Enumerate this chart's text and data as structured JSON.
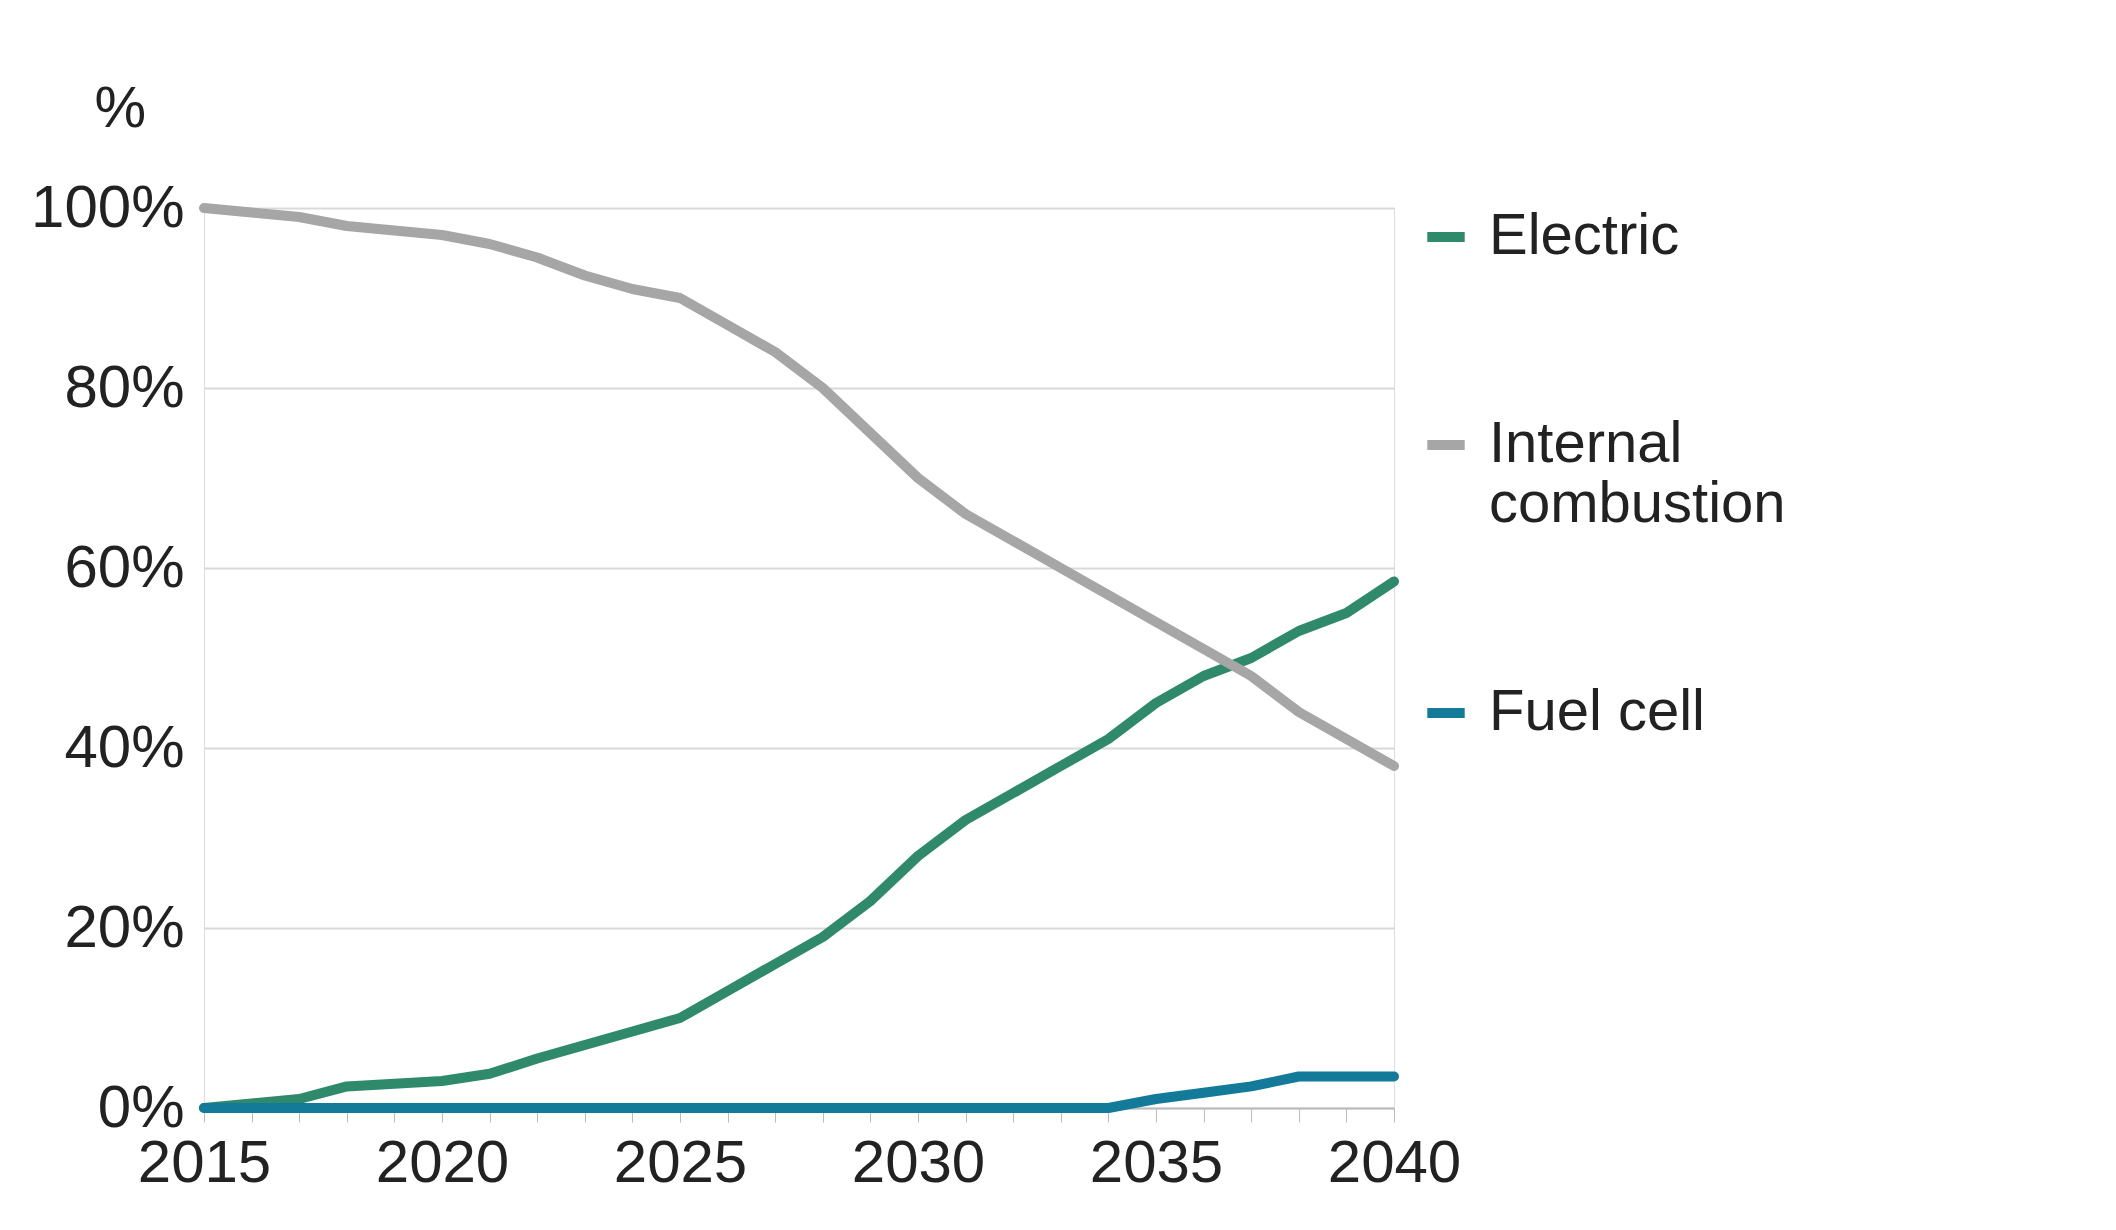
{
  "chart_data": {
    "type": "line",
    "ylabel": "%",
    "x": [
      2015,
      2016,
      2017,
      2018,
      2019,
      2020,
      2021,
      2022,
      2023,
      2024,
      2025,
      2026,
      2027,
      2028,
      2029,
      2030,
      2031,
      2032,
      2033,
      2034,
      2035,
      2036,
      2037,
      2038,
      2039,
      2040
    ],
    "series": [
      {
        "name": "Electric",
        "color": "#2f8a6b",
        "values": [
          0,
          0.5,
          1,
          2.4,
          2.7,
          3,
          3.8,
          5.5,
          7,
          8.5,
          10,
          13,
          16,
          19,
          23,
          28,
          32,
          35,
          38,
          41,
          45,
          48,
          50,
          53,
          55,
          58.5
        ]
      },
      {
        "name": "Internal combustion",
        "color": "#a6a6a6",
        "values": [
          100,
          99.5,
          99,
          98,
          97.5,
          97,
          96,
          94.5,
          92.5,
          91,
          90,
          87,
          84,
          80,
          75,
          70,
          66,
          63,
          60,
          57,
          54,
          51,
          48,
          44,
          41,
          38
        ]
      },
      {
        "name": "Fuel cell",
        "color": "#137a9a",
        "values": [
          0,
          0,
          0,
          0,
          0,
          0,
          0,
          0,
          0,
          0,
          0,
          0,
          0,
          0,
          0,
          0,
          0,
          0,
          0,
          0,
          1,
          1.7,
          2.4,
          3.5,
          3.5,
          3.5
        ]
      }
    ],
    "xlim": [
      2015,
      2040
    ],
    "xticks": [
      2015,
      {
        "value": 2016,
        "label": null
      },
      {
        "value": 2017,
        "label": null
      },
      {
        "value": 2018,
        "label": null
      },
      {
        "value": 2019,
        "label": null
      },
      2020,
      {
        "value": 2021,
        "label": null
      },
      {
        "value": 2022,
        "label": null
      },
      {
        "value": 2023,
        "label": null
      },
      {
        "value": 2024,
        "label": null
      },
      2025,
      {
        "value": 2026,
        "label": null
      },
      {
        "value": 2027,
        "label": null
      },
      {
        "value": 2028,
        "label": null
      },
      {
        "value": 2029,
        "label": null
      },
      2030,
      {
        "value": 2031,
        "label": null
      },
      {
        "value": 2032,
        "label": null
      },
      {
        "value": 2033,
        "label": null
      },
      {
        "value": 2034,
        "label": null
      },
      2035,
      {
        "value": 2036,
        "label": null
      },
      {
        "value": 2037,
        "label": null
      },
      {
        "value": 2038,
        "label": null
      },
      {
        "value": 2039,
        "label": null
      },
      2040
    ],
    "ylim": [
      0,
      100
    ],
    "yticks": [
      {
        "value": 0,
        "label": "0%"
      },
      {
        "value": 20,
        "label": "20%"
      },
      {
        "value": 40,
        "label": "40%"
      },
      {
        "value": 60,
        "label": "60%"
      },
      {
        "value": 80,
        "label": "80%"
      },
      {
        "value": 100,
        "label": "100%"
      }
    ],
    "grid": "y",
    "legend": "right",
    "line_style": "solid",
    "marker": "none"
  }
}
